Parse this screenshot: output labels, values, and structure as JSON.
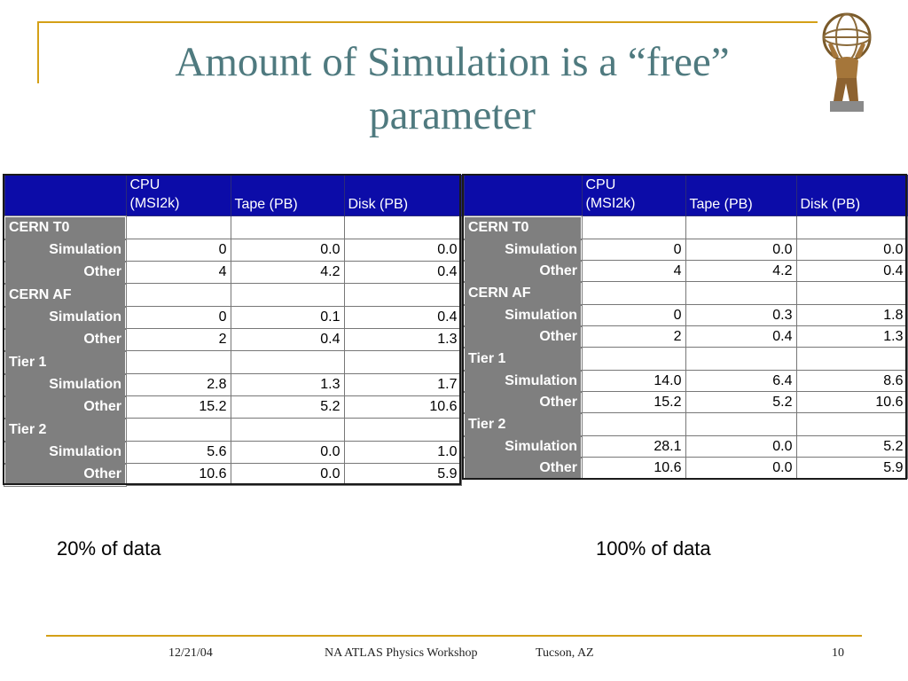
{
  "slide": {
    "title_line1": "Amount of Simulation is a “free”",
    "title_line2": "parameter",
    "footer": {
      "date": "12/21/04",
      "event": "NA ATLAS  Physics Workshop",
      "location": "Tucson, AZ",
      "page": "10"
    }
  },
  "columns": {
    "cpu_line1": "CPU",
    "cpu_line2": "(MSI2k)",
    "tape": "Tape (PB)",
    "disk": "Disk (PB)"
  },
  "table_left": {
    "caption": "20% of data",
    "sections": [
      {
        "name": "CERN T0",
        "rows": [
          {
            "label": "Simulation",
            "cpu": "0",
            "tape": "0.0",
            "disk": "0.0"
          },
          {
            "label": "Other",
            "cpu": "4",
            "tape": "4.2",
            "disk": "0.4"
          }
        ]
      },
      {
        "name": "CERN AF",
        "rows": [
          {
            "label": "Simulation",
            "cpu": "0",
            "tape": "0.1",
            "disk": "0.4"
          },
          {
            "label": "Other",
            "cpu": "2",
            "tape": "0.4",
            "disk": "1.3"
          }
        ]
      },
      {
        "name": "Tier 1",
        "rows": [
          {
            "label": "Simulation",
            "cpu": "2.8",
            "tape": "1.3",
            "disk": "1.7"
          },
          {
            "label": "Other",
            "cpu": "15.2",
            "tape": "5.2",
            "disk": "10.6"
          }
        ]
      },
      {
        "name": "Tier 2",
        "rows": [
          {
            "label": "Simulation",
            "cpu": "5.6",
            "tape": "0.0",
            "disk": "1.0"
          },
          {
            "label": "Other",
            "cpu": "10.6",
            "tape": "0.0",
            "disk": "5.9"
          }
        ]
      }
    ]
  },
  "table_right": {
    "caption": "100% of data",
    "sections": [
      {
        "name": "CERN T0",
        "rows": [
          {
            "label": "Simulation",
            "cpu": "0",
            "tape": "0.0",
            "disk": "0.0"
          },
          {
            "label": "Other",
            "cpu": "4",
            "tape": "4.2",
            "disk": "0.4"
          }
        ]
      },
      {
        "name": "CERN AF",
        "rows": [
          {
            "label": "Simulation",
            "cpu": "0",
            "tape": "0.3",
            "disk": "1.8"
          },
          {
            "label": "Other",
            "cpu": "2",
            "tape": "0.4",
            "disk": "1.3"
          }
        ]
      },
      {
        "name": "Tier 1",
        "rows": [
          {
            "label": "Simulation",
            "cpu": "14.0",
            "tape": "6.4",
            "disk": "8.6"
          },
          {
            "label": "Other",
            "cpu": "15.2",
            "tape": "5.2",
            "disk": "10.6"
          }
        ]
      },
      {
        "name": "Tier 2",
        "rows": [
          {
            "label": "Simulation",
            "cpu": "28.1",
            "tape": "0.0",
            "disk": "5.2"
          },
          {
            "label": "Other",
            "cpu": "10.6",
            "tape": "0.0",
            "disk": "5.9"
          }
        ]
      }
    ]
  },
  "logo": {
    "icon": "atlas-statue-icon"
  }
}
